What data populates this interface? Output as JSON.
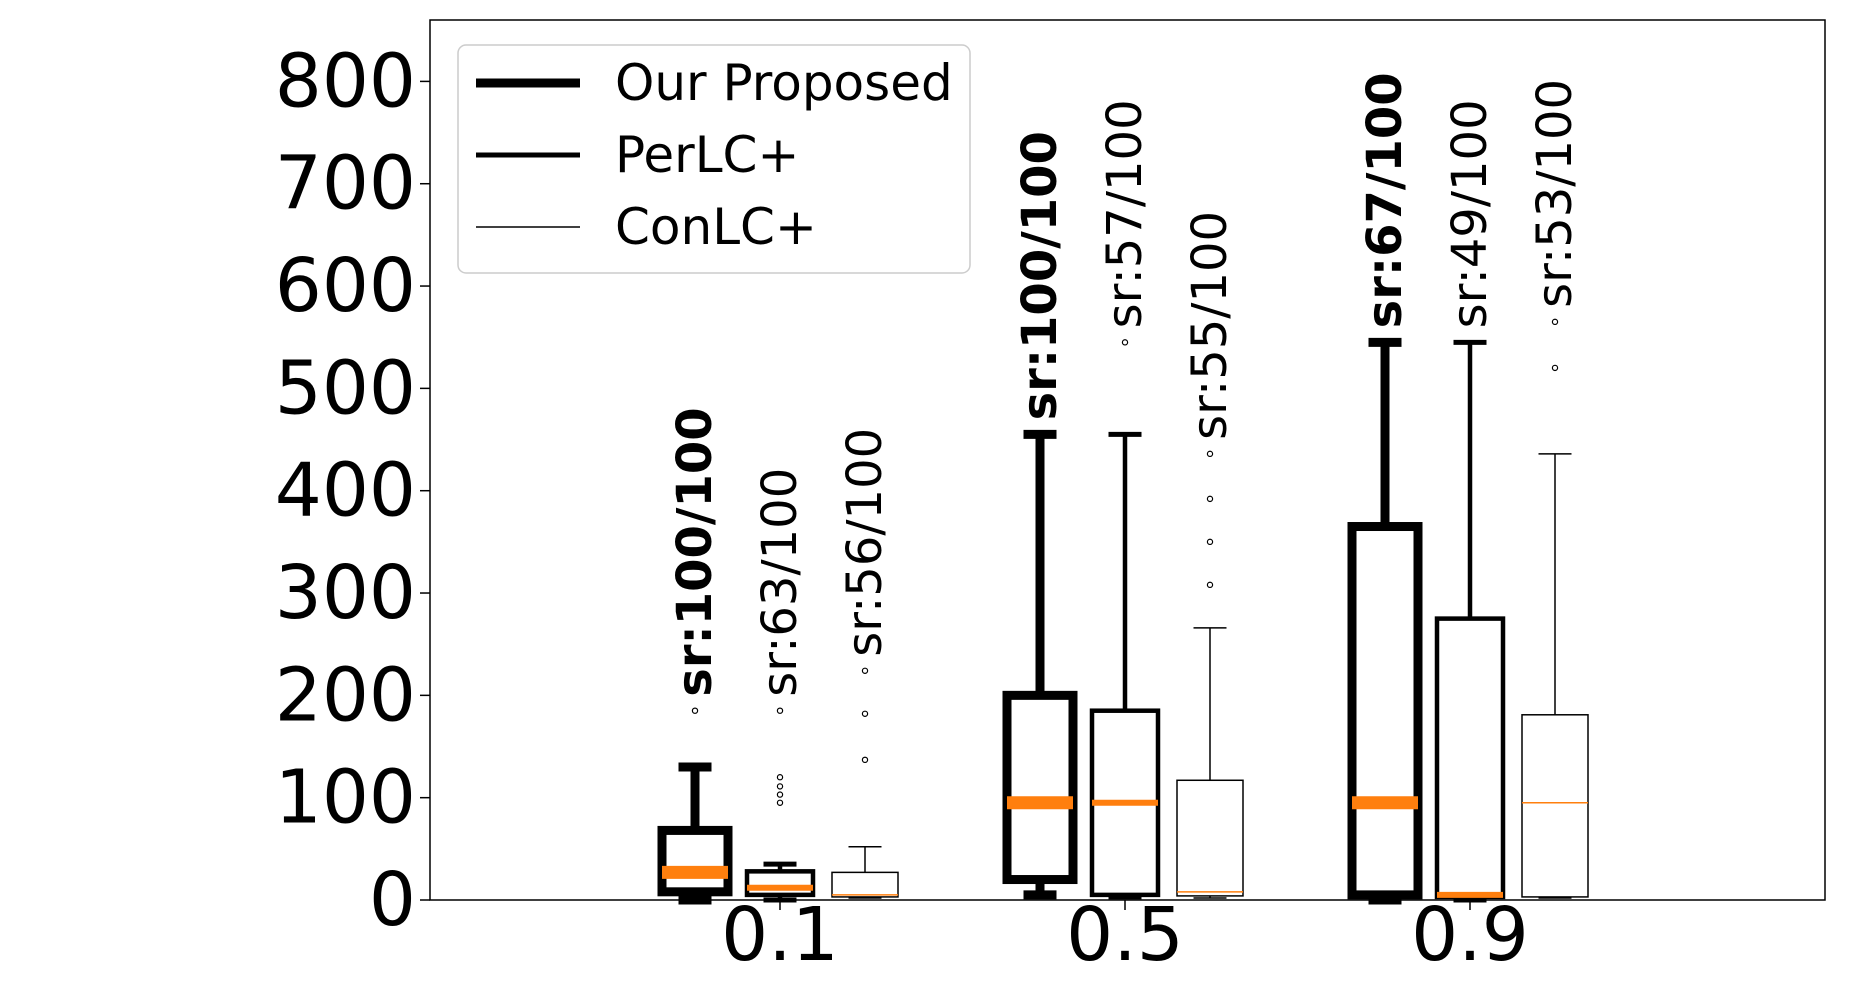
{
  "chart_data": {
    "type": "box",
    "categories": [
      "0.1",
      "0.5",
      "0.9"
    ],
    "ylim": [
      0,
      860
    ],
    "yticks": [
      "0",
      "100",
      "200",
      "300",
      "400",
      "500",
      "600",
      "700",
      "800"
    ],
    "legend_position": "top-left",
    "colors": {
      "box": "#000000",
      "median": "#ff7f0e"
    },
    "series": [
      {
        "name": "Our Proposed",
        "weight": "thick",
        "boxes": [
          {
            "category": "0.1",
            "whisker_low": 0,
            "q1": 8,
            "median": 27,
            "q3": 68,
            "whisker_high": 130,
            "outliers": [
              185
            ],
            "label": "sr:100/100"
          },
          {
            "category": "0.5",
            "whisker_low": 5,
            "q1": 20,
            "median": 95,
            "q3": 200,
            "whisker_high": 455,
            "outliers": [],
            "label": "sr:100/100"
          },
          {
            "category": "0.9",
            "whisker_low": 0,
            "q1": 5,
            "median": 95,
            "q3": 365,
            "whisker_high": 545,
            "outliers": [],
            "label": "sr:67/100"
          }
        ]
      },
      {
        "name": "PerLC+",
        "weight": "medium",
        "boxes": [
          {
            "category": "0.1",
            "whisker_low": 0,
            "q1": 5,
            "median": 12,
            "q3": 28,
            "whisker_high": 35,
            "outliers": [
              95,
              103,
              111,
              120,
              185
            ],
            "label": "sr:63/100"
          },
          {
            "category": "0.5",
            "whisker_low": 3,
            "q1": 5,
            "median": 95,
            "q3": 185,
            "whisker_high": 455,
            "outliers": [
              545
            ],
            "label": "sr:57/100"
          },
          {
            "category": "0.9",
            "whisker_low": 0,
            "q1": 3,
            "median": 5,
            "q3": 275,
            "whisker_high": 545,
            "outliers": [],
            "label": "sr:49/100"
          }
        ]
      },
      {
        "name": "ConLC+",
        "weight": "thin",
        "boxes": [
          {
            "category": "0.1",
            "whisker_low": 2,
            "q1": 3,
            "median": 5,
            "q3": 27,
            "whisker_high": 52,
            "outliers": [
              137,
              182,
              224
            ],
            "label": "sr:56/100"
          },
          {
            "category": "0.5",
            "whisker_low": 2,
            "q1": 4,
            "median": 8,
            "q3": 117,
            "whisker_high": 266,
            "outliers": [
              308,
              350,
              392,
              436
            ],
            "label": "sr:55/100"
          },
          {
            "category": "0.9",
            "whisker_low": 2,
            "q1": 3,
            "median": 95,
            "q3": 181,
            "whisker_high": 436,
            "outliers": [
              520,
              565
            ],
            "label": "sr:53/100"
          }
        ]
      }
    ]
  }
}
